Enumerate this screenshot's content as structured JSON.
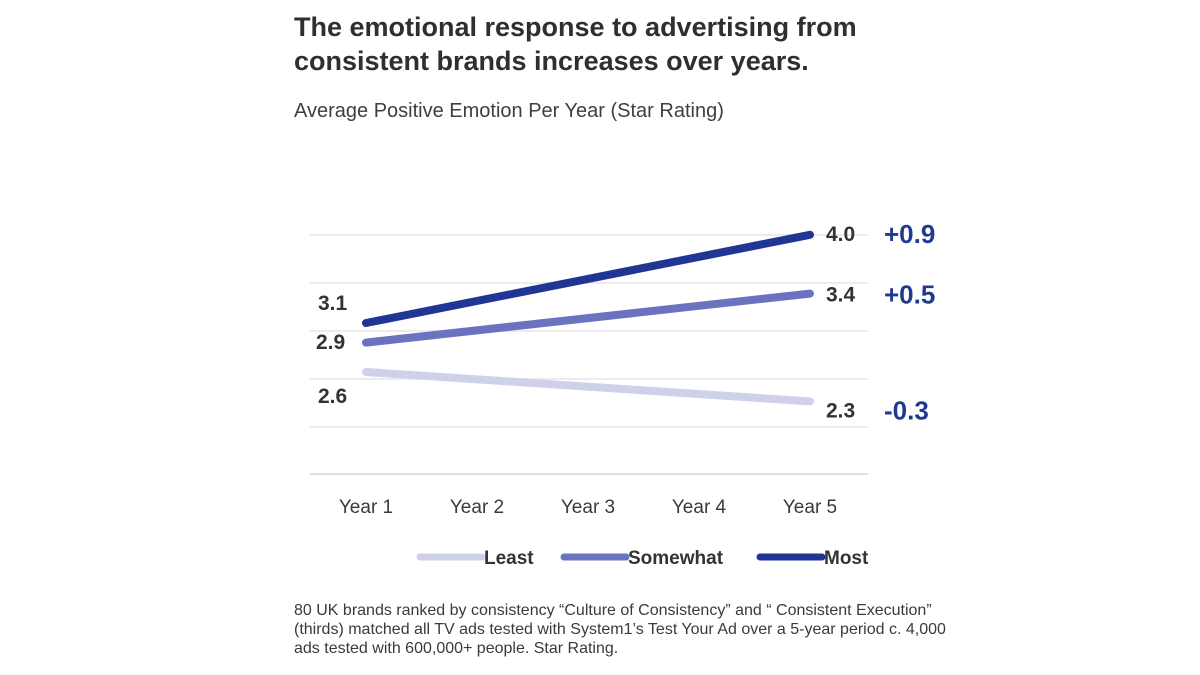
{
  "title": "The emotional response to advertising from consistent brands increases over years.",
  "chart_data": {
    "type": "line",
    "title": "Average Positive Emotion Per Year (Star Rating)",
    "xlabel": "",
    "ylabel": "",
    "categories": [
      "Year 1",
      "Year 2",
      "Year 3",
      "Year 4",
      "Year 5"
    ],
    "series": [
      {
        "name": "Least",
        "color": "#cfd1ea",
        "values": [
          2.6,
          null,
          null,
          null,
          2.3
        ],
        "start_label": "2.6",
        "end_label": "2.3",
        "change_label": "-0.3"
      },
      {
        "name": "Somewhat",
        "color": "#6b72bf",
        "values": [
          2.9,
          null,
          null,
          null,
          3.4
        ],
        "start_label": "2.9",
        "end_label": "3.4",
        "change_label": "+0.5"
      },
      {
        "name": "Most",
        "color": "#1f3695",
        "values": [
          3.1,
          null,
          null,
          null,
          4.0
        ],
        "start_label": "3.1",
        "end_label": "4.0",
        "change_label": "+0.9"
      }
    ],
    "change_color": "#1f3a8f",
    "grid": true,
    "legend_position": "bottom"
  },
  "footnote": "80 UK brands ranked by consistency “Culture of Consistency” and “ Consistent Execution” (thirds) matched all TV ads tested with System1’s Test Your Ad over a 5-year period c. 4,000 ads tested with 600,000+ people. Star Rating."
}
